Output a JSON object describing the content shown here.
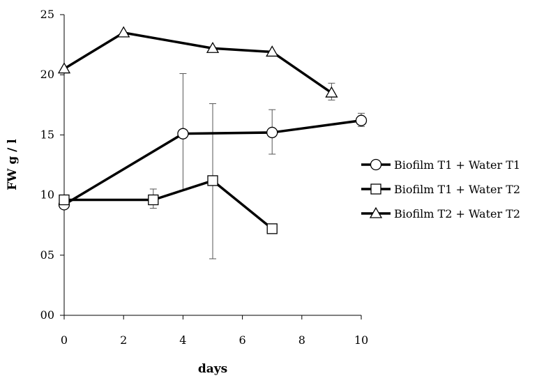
{
  "chart_data": {
    "type": "line",
    "title": "",
    "xlabel": "days",
    "ylabel": "FW g / l",
    "xlim": [
      0,
      10
    ],
    "ylim": [
      0,
      25
    ],
    "x_ticks": [
      0,
      2,
      4,
      6,
      8,
      10
    ],
    "x_tick_labels": [
      "0",
      "2",
      "4",
      "6",
      "8",
      "10"
    ],
    "y_ticks": [
      0,
      5,
      10,
      15,
      20,
      25
    ],
    "y_tick_labels": [
      "00",
      "05",
      "10",
      "15",
      "20",
      "25"
    ],
    "grid": false,
    "legend_position": "right",
    "series": [
      {
        "name": "Biofilm T1 + Water T1",
        "marker": "circle",
        "color": "#000000",
        "points": [
          {
            "x": 0,
            "y": 9.2
          },
          {
            "x": 4,
            "y": 15.1,
            "err_low": 10.4,
            "err_high": 20.1
          },
          {
            "x": 7,
            "y": 15.2,
            "err_low": 13.4,
            "err_high": 17.1
          },
          {
            "x": 10,
            "y": 16.2,
            "err_low": 15.7,
            "err_high": 16.8
          }
        ]
      },
      {
        "name": "Biofilm T1 + Water T2",
        "marker": "square",
        "color": "#000000",
        "points": [
          {
            "x": 0,
            "y": 9.6
          },
          {
            "x": 3,
            "y": 9.6,
            "err_low": 8.9,
            "err_high": 10.5
          },
          {
            "x": 5,
            "y": 11.2,
            "err_low": 4.7,
            "err_high": 17.6
          },
          {
            "x": 7,
            "y": 7.2
          }
        ]
      },
      {
        "name": "Biofilm T2 + Water T2",
        "marker": "triangle",
        "color": "#000000",
        "points": [
          {
            "x": 0,
            "y": 20.5
          },
          {
            "x": 2,
            "y": 23.5
          },
          {
            "x": 5,
            "y": 22.2
          },
          {
            "x": 7,
            "y": 21.9
          },
          {
            "x": 9,
            "y": 18.5,
            "err_low": 17.9,
            "err_high": 19.3
          }
        ]
      }
    ]
  }
}
